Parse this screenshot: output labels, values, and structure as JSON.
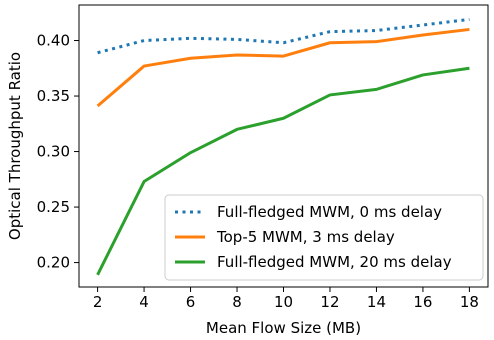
{
  "chart_data": {
    "type": "line",
    "title": "",
    "xlabel": "Mean Flow Size (MB)",
    "ylabel": "Optical Throughput Ratio",
    "x": [
      2,
      4,
      6,
      8,
      10,
      12,
      14,
      16,
      18
    ],
    "xticks": [
      "2",
      "4",
      "6",
      "8",
      "10",
      "12",
      "14",
      "16",
      "18"
    ],
    "yticks": [
      "0.20",
      "0.25",
      "0.30",
      "0.35",
      "0.40"
    ],
    "xlim": [
      1.2,
      18.8
    ],
    "ylim": [
      0.178,
      0.432
    ],
    "grid": false,
    "legend_position": "lower-right",
    "series": [
      {
        "name": "Full-fledged MWM, 0 ms delay",
        "color": "#1f77b4",
        "style": "dotted",
        "values": [
          0.389,
          0.4,
          0.402,
          0.401,
          0.398,
          0.408,
          0.409,
          0.414,
          0.419
        ]
      },
      {
        "name": "Top-5 MWM, 3 ms delay",
        "color": "#ff7f0e",
        "style": "solid",
        "values": [
          0.341,
          0.377,
          0.384,
          0.387,
          0.386,
          0.398,
          0.399,
          0.405,
          0.41
        ]
      },
      {
        "name": "Full-fledged MWM, 20 ms delay",
        "color": "#2ca02c",
        "style": "solid",
        "values": [
          0.189,
          0.273,
          0.299,
          0.32,
          0.33,
          0.351,
          0.356,
          0.369,
          0.375
        ]
      }
    ]
  }
}
